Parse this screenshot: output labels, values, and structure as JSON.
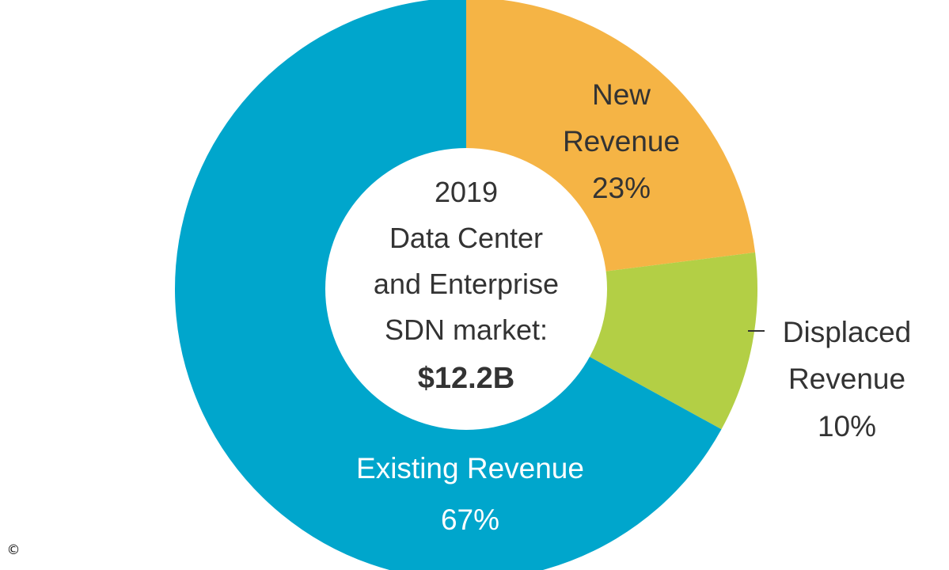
{
  "chart_data": {
    "type": "pie",
    "variant": "donut",
    "center_label": {
      "lines": [
        "2019",
        "Data Center",
        "and Enterprise",
        "SDN market:"
      ],
      "total": "$12.2B"
    },
    "slices": [
      {
        "key": "new",
        "label_lines": [
          "New",
          "Revenue"
        ],
        "value": 23,
        "value_label": "23%",
        "color": "#F5B445",
        "label_color": "#333333"
      },
      {
        "key": "displaced",
        "label_lines": [
          "Displaced",
          "Revenue"
        ],
        "value": 10,
        "value_label": "10%",
        "color": "#B3CF45",
        "label_color": "#333333"
      },
      {
        "key": "existing",
        "label_lines": [
          "Existing Revenue"
        ],
        "value": 67,
        "value_label": "67%",
        "color": "#00A6CC",
        "label_color": "#FFFFFF"
      }
    ],
    "units": "percent",
    "legend": "none"
  },
  "watermark": {
    "symbol": "©"
  }
}
